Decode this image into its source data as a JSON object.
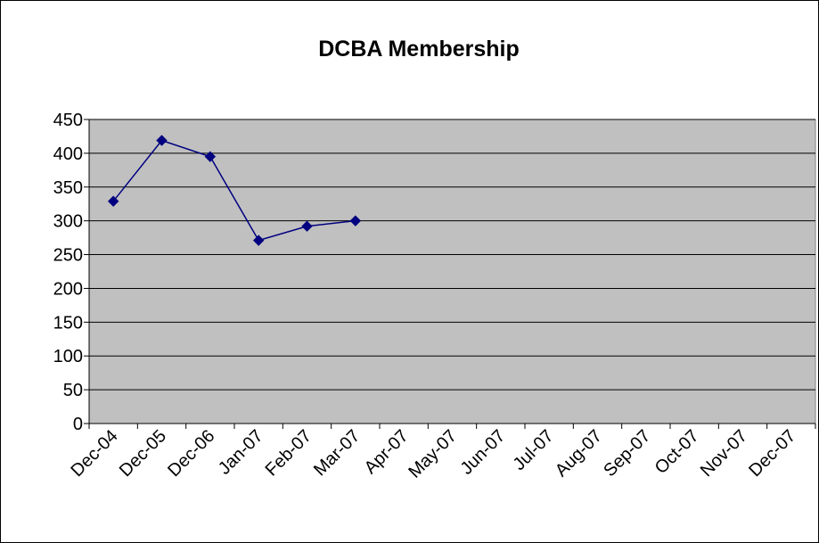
{
  "chart_data": {
    "type": "line",
    "title": "DCBA Membership",
    "xlabel": "",
    "ylabel": "",
    "categories": [
      "Dec-04",
      "Dec-05",
      "Dec-06",
      "Jan-07",
      "Feb-07",
      "Mar-07",
      "Apr-07",
      "May-07",
      "Jun-07",
      "Jul-07",
      "Aug-07",
      "Sep-07",
      "Oct-07",
      "Nov-07",
      "Dec-07"
    ],
    "series": [
      {
        "values": [
          329,
          419,
          395,
          271,
          292,
          300,
          null,
          null,
          null,
          null,
          null,
          null,
          null,
          null,
          null
        ]
      }
    ],
    "ylim": [
      0,
      450
    ],
    "yticks": [
      0,
      50,
      100,
      150,
      200,
      250,
      300,
      350,
      400,
      450
    ],
    "grid": true,
    "legend": "none",
    "colors": {
      "series": "#000080",
      "plot_bg": "#c0c0c0",
      "gridline": "#000000"
    }
  }
}
